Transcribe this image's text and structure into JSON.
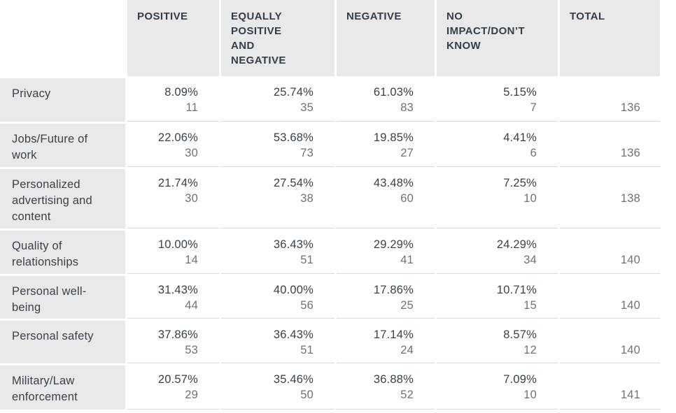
{
  "colors": {
    "header_background": "#e9e9e9",
    "label_background": "#e9e9e9",
    "text_dark": "#333e48",
    "text_muted": "#6e7379",
    "row_border": "#d8d8d8"
  },
  "chart_data": {
    "type": "table",
    "title": "",
    "columns": [
      "POSITIVE",
      "EQUALLY POSITIVE AND NEGATIVE",
      "NEGATIVE",
      "NO IMPACT/DON’T KNOW",
      "TOTAL"
    ],
    "rows": [
      {
        "label": "Privacy",
        "values": [
          {
            "percent": "8.09%",
            "count": 11
          },
          {
            "percent": "25.74%",
            "count": 35
          },
          {
            "percent": "61.03%",
            "count": 83
          },
          {
            "percent": "5.15%",
            "count": 7
          }
        ],
        "total": 136
      },
      {
        "label": "Jobs/Future of work",
        "values": [
          {
            "percent": "22.06%",
            "count": 30
          },
          {
            "percent": "53.68%",
            "count": 73
          },
          {
            "percent": "19.85%",
            "count": 27
          },
          {
            "percent": "4.41%",
            "count": 6
          }
        ],
        "total": 136
      },
      {
        "label": "Personalized advertising and content",
        "values": [
          {
            "percent": "21.74%",
            "count": 30
          },
          {
            "percent": "27.54%",
            "count": 38
          },
          {
            "percent": "43.48%",
            "count": 60
          },
          {
            "percent": "7.25%",
            "count": 10
          }
        ],
        "total": 138
      },
      {
        "label": "Quality of relationships",
        "values": [
          {
            "percent": "10.00%",
            "count": 14
          },
          {
            "percent": "36.43%",
            "count": 51
          },
          {
            "percent": "29.29%",
            "count": 41
          },
          {
            "percent": "24.29%",
            "count": 34
          }
        ],
        "total": 140
      },
      {
        "label": "Personal well-being",
        "values": [
          {
            "percent": "31.43%",
            "count": 44
          },
          {
            "percent": "40.00%",
            "count": 56
          },
          {
            "percent": "17.86%",
            "count": 25
          },
          {
            "percent": "10.71%",
            "count": 15
          }
        ],
        "total": 140
      },
      {
        "label": "Personal safety",
        "values": [
          {
            "percent": "37.86%",
            "count": 53
          },
          {
            "percent": "36.43%",
            "count": 51
          },
          {
            "percent": "17.14%",
            "count": 24
          },
          {
            "percent": "8.57%",
            "count": 12
          }
        ],
        "total": 140
      },
      {
        "label": "Military/Law enforcement",
        "values": [
          {
            "percent": "20.57%",
            "count": 29
          },
          {
            "percent": "35.46%",
            "count": 50
          },
          {
            "percent": "36.88%",
            "count": 52
          },
          {
            "percent": "7.09%",
            "count": 10
          }
        ],
        "total": 141
      }
    ]
  }
}
